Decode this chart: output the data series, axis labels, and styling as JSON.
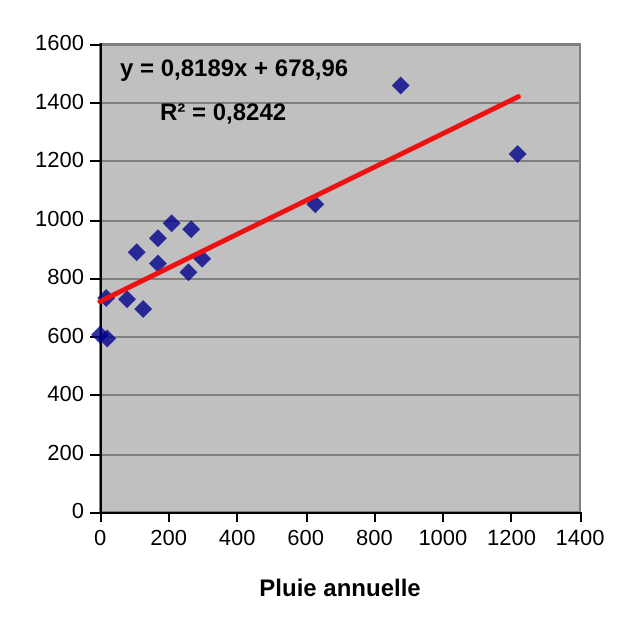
{
  "chart_data": {
    "type": "scatter",
    "xlabel": "Pluie annuelle",
    "annotations": [
      "y = 0,8189x + 678,96",
      "R² = 0,8242"
    ],
    "xlim": [
      0,
      1400
    ],
    "xticks": [
      0,
      200,
      400,
      600,
      800,
      1000,
      1200,
      1400
    ],
    "ylim": [
      0,
      1600
    ],
    "yticks": [
      0,
      200,
      400,
      600,
      800,
      1000,
      1200,
      1400,
      1600
    ],
    "grid": "y",
    "series": [
      {
        "color": "#00008b",
        "marker": "diamond",
        "x": [
          0,
          21,
          18,
          79,
          107,
          126,
          169,
          169,
          209,
          266,
          258,
          298,
          628,
          877,
          1218
        ],
        "values": [
          606,
          593,
          732,
          727,
          888,
          694,
          936,
          850,
          987,
          967,
          820,
          866,
          1052,
          1458,
          1224
        ]
      },
      {
        "type": "line",
        "color": "#ee1111",
        "marker": "none",
        "x": [
          0,
          1220
        ],
        "values": [
          720,
          1420
        ]
      }
    ]
  }
}
